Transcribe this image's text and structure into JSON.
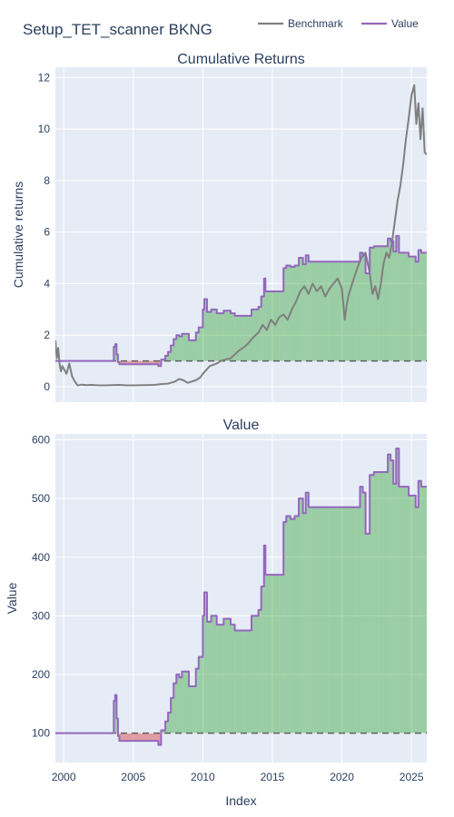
{
  "figure": {
    "title": "Setup_TET_scanner BKNG",
    "legend_position": "top-right",
    "colors": {
      "plot_bg": "#E5ECF6",
      "grid": "#ffffff",
      "benchmark": "#7f7f7f",
      "value": "#9467bd",
      "profit_fill": "#2ca02c",
      "loss_fill": "#d62728"
    }
  },
  "chart_data": [
    {
      "type": "line",
      "title": "Cumulative Returns",
      "xlabel": "",
      "ylabel": "Cumulative returns",
      "xlim": [
        1999.4,
        2026.1
      ],
      "ylim": [
        -0.6,
        12.4
      ],
      "x_ticks": [
        2000,
        2005,
        2010,
        2015,
        2020,
        2025
      ],
      "x_tick_labels_shown": false,
      "y_ticks": [
        0,
        2,
        4,
        6,
        8,
        10,
        12
      ],
      "grid": true,
      "baseline": 1,
      "series": [
        {
          "name": "Benchmark",
          "x": [
            1999.4,
            1999.5,
            1999.6,
            1999.7,
            1999.8,
            1999.9,
            2000.0,
            2000.2,
            2000.4,
            2000.6,
            2000.8,
            2001.0,
            2001.3,
            2001.6,
            2002.0,
            2002.5,
            2003.0,
            2003.5,
            2004.0,
            2004.5,
            2005.0,
            2006.0,
            2006.5,
            2007.0,
            2007.5,
            2008.0,
            2008.3,
            2008.6,
            2008.9,
            2009.2,
            2009.5,
            2009.8,
            2010.0,
            2010.5,
            2011.0,
            2011.3,
            2011.6,
            2012.0,
            2012.3,
            2012.6,
            2013.0,
            2013.3,
            2013.6,
            2014.0,
            2014.3,
            2014.6,
            2014.9,
            2015.2,
            2015.5,
            2015.8,
            2016.1,
            2016.4,
            2016.7,
            2017.0,
            2017.3,
            2017.6,
            2017.9,
            2018.2,
            2018.5,
            2018.8,
            2019.1,
            2019.4,
            2019.7,
            2020.0,
            2020.2,
            2020.35,
            2020.5,
            2020.8,
            2021.1,
            2021.4,
            2021.7,
            2022.0,
            2022.2,
            2022.4,
            2022.6,
            2022.8,
            2023.0,
            2023.2,
            2023.4,
            2023.6,
            2023.8,
            2024.0,
            2024.2,
            2024.4,
            2024.6,
            2024.8,
            2025.0,
            2025.2,
            2025.35,
            2025.5,
            2025.65,
            2025.8,
            2025.95,
            2026.1
          ],
          "values": [
            1.8,
            1.1,
            1.5,
            0.9,
            0.6,
            0.8,
            0.7,
            0.5,
            0.9,
            0.4,
            0.2,
            0.05,
            0.08,
            0.06,
            0.07,
            0.05,
            0.05,
            0.06,
            0.07,
            0.05,
            0.05,
            0.06,
            0.07,
            0.1,
            0.12,
            0.2,
            0.3,
            0.25,
            0.15,
            0.2,
            0.25,
            0.35,
            0.5,
            0.8,
            0.9,
            1.0,
            1.05,
            1.1,
            1.25,
            1.4,
            1.55,
            1.7,
            1.9,
            2.1,
            2.4,
            2.2,
            2.6,
            2.4,
            2.7,
            2.8,
            2.6,
            3.0,
            3.3,
            3.7,
            3.9,
            3.6,
            4.0,
            3.7,
            3.9,
            3.5,
            3.8,
            4.0,
            4.2,
            3.8,
            2.6,
            3.2,
            3.6,
            4.1,
            4.6,
            5.0,
            5.2,
            4.4,
            3.6,
            3.9,
            3.4,
            4.0,
            4.8,
            5.2,
            5.0,
            5.6,
            6.4,
            7.2,
            7.8,
            8.6,
            9.6,
            10.4,
            11.3,
            11.7,
            10.2,
            11.0,
            9.6,
            10.8,
            9.1,
            9.0
          ]
        },
        {
          "name": "Value",
          "x": [
            1999.4,
            2003.5,
            2003.6,
            2003.7,
            2003.8,
            2003.9,
            2004.0,
            2005.5,
            2006.5,
            2006.8,
            2007.0,
            2007.3,
            2007.5,
            2007.7,
            2007.9,
            2008.1,
            2008.3,
            2008.5,
            2009.0,
            2009.5,
            2009.7,
            2010.0,
            2010.1,
            2010.3,
            2010.6,
            2011.0,
            2011.5,
            2012.0,
            2012.3,
            2013.0,
            2013.5,
            2014.0,
            2014.2,
            2014.4,
            2014.5,
            2015.0,
            2015.5,
            2015.8,
            2016.0,
            2016.3,
            2016.6,
            2016.9,
            2017.2,
            2017.4,
            2017.6,
            2017.8,
            2018.0,
            2019.0,
            2020.0,
            2021.0,
            2021.3,
            2021.5,
            2021.7,
            2022.0,
            2022.3,
            2022.6,
            2023.0,
            2023.3,
            2023.5,
            2023.7,
            2023.9,
            2024.1,
            2024.5,
            2024.8,
            2025.0,
            2025.3,
            2025.5,
            2025.7,
            2026.1
          ],
          "values": [
            1.0,
            1.0,
            1.55,
            1.65,
            1.25,
            0.95,
            0.87,
            0.87,
            0.87,
            0.8,
            1.05,
            1.2,
            1.35,
            1.6,
            1.85,
            2.0,
            1.95,
            2.05,
            1.8,
            2.1,
            2.3,
            3.0,
            3.4,
            2.9,
            3.0,
            2.85,
            2.95,
            2.85,
            2.75,
            2.75,
            3.0,
            3.1,
            3.5,
            4.2,
            3.7,
            3.7,
            3.7,
            4.6,
            4.7,
            4.65,
            4.7,
            5.0,
            4.75,
            5.1,
            4.85,
            4.85,
            4.85,
            4.85,
            4.85,
            4.85,
            5.2,
            5.1,
            4.4,
            5.4,
            5.45,
            5.45,
            5.45,
            5.75,
            5.65,
            5.25,
            5.85,
            5.2,
            5.2,
            5.05,
            5.05,
            4.85,
            5.3,
            5.2,
            5.2
          ]
        }
      ]
    },
    {
      "type": "area",
      "title": "Value",
      "xlabel": "Index",
      "ylabel": "Value",
      "xlim": [
        1999.4,
        2026.1
      ],
      "ylim": [
        50,
        610
      ],
      "x_ticks": [
        2000,
        2005,
        2010,
        2015,
        2020,
        2025
      ],
      "y_ticks": [
        100,
        200,
        300,
        400,
        500,
        600
      ],
      "grid": true,
      "baseline": 100,
      "series": [
        {
          "name": "Value",
          "x": [
            1999.4,
            2003.5,
            2003.6,
            2003.7,
            2003.8,
            2003.9,
            2004.0,
            2005.5,
            2006.5,
            2006.8,
            2007.0,
            2007.3,
            2007.5,
            2007.7,
            2007.9,
            2008.1,
            2008.3,
            2008.5,
            2009.0,
            2009.5,
            2009.7,
            2010.0,
            2010.1,
            2010.3,
            2010.6,
            2011.0,
            2011.5,
            2012.0,
            2012.3,
            2013.0,
            2013.5,
            2014.0,
            2014.2,
            2014.4,
            2014.5,
            2015.0,
            2015.5,
            2015.8,
            2016.0,
            2016.3,
            2016.6,
            2016.9,
            2017.2,
            2017.4,
            2017.6,
            2017.8,
            2018.0,
            2019.0,
            2020.0,
            2021.0,
            2021.3,
            2021.5,
            2021.7,
            2022.0,
            2022.3,
            2022.6,
            2023.0,
            2023.3,
            2023.5,
            2023.7,
            2023.9,
            2024.1,
            2024.5,
            2024.8,
            2025.0,
            2025.3,
            2025.5,
            2025.7,
            2026.1
          ],
          "values": [
            100,
            100,
            155,
            165,
            125,
            95,
            87,
            87,
            87,
            80,
            105,
            120,
            135,
            160,
            185,
            200,
            195,
            205,
            180,
            210,
            230,
            300,
            340,
            290,
            300,
            285,
            295,
            285,
            275,
            275,
            300,
            310,
            350,
            420,
            370,
            370,
            370,
            460,
            470,
            465,
            470,
            500,
            475,
            510,
            485,
            485,
            485,
            485,
            485,
            485,
            520,
            510,
            440,
            540,
            545,
            545,
            545,
            575,
            565,
            525,
            585,
            520,
            520,
            505,
            505,
            485,
            530,
            520,
            520
          ]
        }
      ]
    }
  ]
}
